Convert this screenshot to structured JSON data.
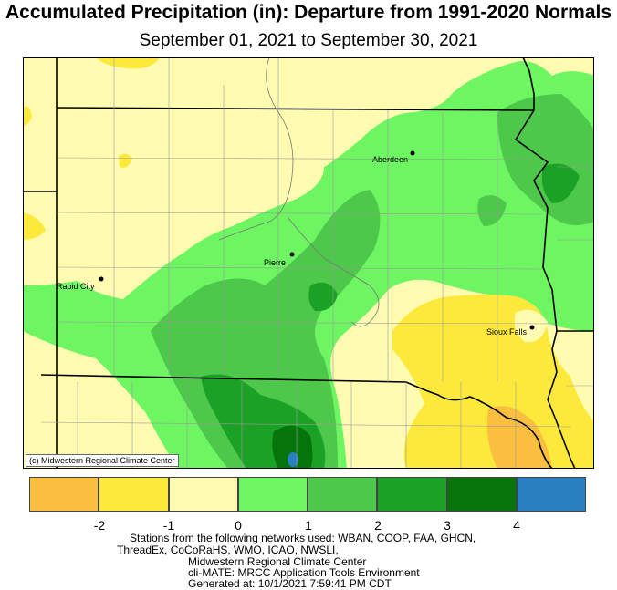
{
  "title": "Accumulated Precipitation (in): Departure from 1991-2020 Normals",
  "subtitle": "September 01, 2021 to September 30, 2021",
  "cities": {
    "aberdeen": "Aberdeen",
    "pierre": "Pierre",
    "rapid_city": "Rapid City",
    "sioux_falls": "Sioux Falls"
  },
  "credit": "(c) Midwestern Regional Climate Center",
  "legend": {
    "colors": [
      "#fbbf3f",
      "#fde93b",
      "#fffcb2",
      "#6ef562",
      "#4ec84b",
      "#1ba126",
      "#05750a",
      "#2a7fc0"
    ],
    "ticks": [
      "-2",
      "-1",
      "0",
      "1",
      "2",
      "3",
      "4"
    ]
  },
  "footer": {
    "line1": "Stations from the following networks used: WBAN, COOP, FAA, GHCN,",
    "line2": "ThreadEx, CoCoRaHS, WMO, ICAO, NWSLI,",
    "line3": "Midwestern Regional Climate Center",
    "line4": "cli-MATE: MRCC Application Tools Environment",
    "line5": "Generated at: 10/1/2021 7:59:41 PM CDT"
  }
}
